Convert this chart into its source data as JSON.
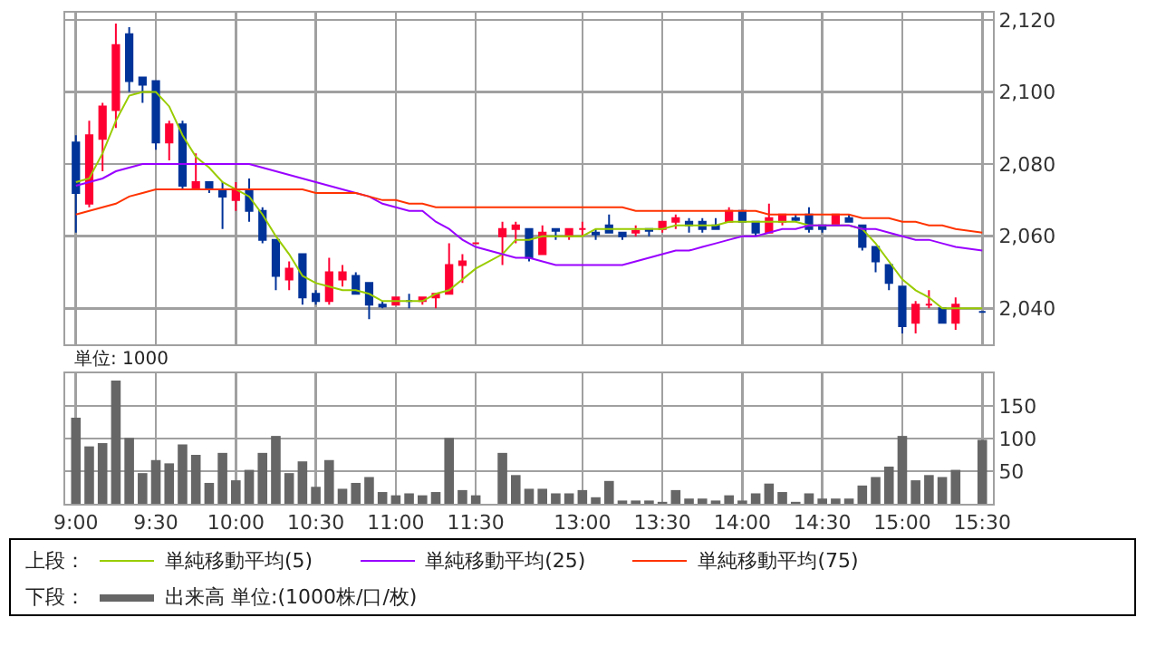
{
  "chart_data": [
    {
      "type": "candlestick",
      "legend_title": "上段：",
      "legend": "bottom",
      "grid": true,
      "tick_labels": "y",
      "categories": [
        null,
        null,
        null,
        null,
        null,
        null,
        null,
        null,
        null,
        null,
        null,
        null,
        null,
        null,
        null,
        null,
        null,
        null,
        null,
        null,
        null,
        null,
        null,
        null,
        null,
        null,
        null,
        null,
        null,
        null,
        null,
        null,
        null,
        null,
        null,
        null,
        null,
        null,
        null,
        null,
        null,
        null,
        null,
        null,
        null,
        null,
        null,
        null,
        null,
        null,
        null,
        null,
        null,
        null,
        null,
        null,
        null,
        null,
        null,
        null,
        null,
        null,
        null,
        null,
        null,
        null,
        null,
        null,
        null
      ],
      "ylim": [
        2030,
        2122
      ],
      "yticks": [
        {
          "value": 2040,
          "label": "2,040"
        },
        {
          "value": 2060,
          "label": "2,060"
        },
        {
          "value": 2080,
          "label": "2,080"
        },
        {
          "value": 2100,
          "label": "2,100"
        },
        {
          "value": 2120,
          "label": "2,120"
        }
      ],
      "ohlc": [
        [
          2086,
          2088,
          2061,
          2072
        ],
        [
          2069,
          2092,
          2068,
          2088
        ],
        [
          2087,
          2097,
          2078,
          2096
        ],
        [
          2095,
          2119,
          2090,
          2113
        ],
        [
          2116,
          2118,
          2100,
          2103
        ],
        [
          2104,
          2104,
          2097,
          2102
        ],
        [
          2103,
          2103,
          2084,
          2086
        ],
        [
          2086,
          2092,
          2081,
          2091
        ],
        [
          2091,
          2092,
          2073,
          2074
        ],
        [
          2073,
          2083,
          2073,
          2075
        ],
        [
          2075,
          2075,
          2072,
          2073
        ],
        [
          2073,
          2075,
          2062,
          2071
        ],
        [
          2070,
          2075,
          2067,
          2073
        ],
        [
          2073,
          2076,
          2064,
          2067
        ],
        [
          2067,
          2068,
          2058,
          2059
        ],
        [
          2059,
          2059,
          2045,
          2049
        ],
        [
          2048,
          2053,
          2045,
          2051
        ],
        [
          2055,
          2055,
          2041,
          2043
        ],
        [
          2044,
          2045,
          2041,
          2042
        ],
        [
          2042,
          2054,
          2041,
          2050
        ],
        [
          2048,
          2052,
          2046,
          2050
        ],
        [
          2049,
          2050,
          2044,
          2044
        ],
        [
          2047,
          2047,
          2037,
          2041
        ],
        [
          2041,
          2042,
          2040,
          2040.5
        ],
        [
          2041,
          2043,
          2041,
          2043
        ],
        [
          2042,
          2044,
          2040,
          2042
        ],
        [
          2042,
          2043,
          2041,
          2043
        ],
        [
          2043,
          2044,
          2040,
          2044
        ],
        [
          2044,
          2058,
          2044,
          2052
        ],
        [
          2052,
          2055,
          2047,
          2053
        ],
        [
          2058,
          2058,
          2058,
          2058
        ],
        null,
        [
          2060,
          2064,
          2052,
          2062
        ],
        [
          2062,
          2064,
          2058,
          2063
        ],
        [
          2062,
          2062,
          2053,
          2054
        ],
        [
          2055,
          2063,
          2055,
          2061
        ],
        [
          2062,
          2062,
          2059,
          2061.5
        ],
        [
          2060,
          2062,
          2059,
          2062
        ],
        [
          2062,
          2064,
          2060,
          2062
        ],
        [
          2061,
          2062,
          2059,
          2060.5
        ],
        [
          2063,
          2066,
          2061,
          2061
        ],
        [
          2061,
          2061,
          2059,
          2060
        ],
        [
          2061,
          2063,
          2060,
          2061.5
        ],
        [
          2062,
          2062,
          2060,
          2061.5
        ],
        [
          2062,
          2064,
          2061,
          2064
        ],
        [
          2064,
          2066,
          2062,
          2065
        ],
        [
          2064,
          2065,
          2061,
          2063
        ],
        [
          2064,
          2065,
          2061,
          2062
        ],
        [
          2063,
          2065,
          2062,
          2062
        ],
        [
          2064,
          2068,
          2064,
          2067
        ],
        [
          2067,
          2067,
          2064,
          2064
        ],
        [
          2064,
          2064,
          2060,
          2061
        ],
        [
          2061,
          2069,
          2061,
          2065
        ],
        [
          2064,
          2066,
          2063,
          2066
        ],
        [
          2065,
          2066,
          2064,
          2064.5
        ],
        [
          2066,
          2068,
          2061,
          2062
        ],
        [
          2063,
          2063,
          2061,
          2062
        ],
        [
          2063,
          2066,
          2063,
          2066
        ],
        [
          2065,
          2066,
          2064,
          2064
        ],
        [
          2063,
          2063,
          2056,
          2057
        ],
        [
          2057,
          2057,
          2050,
          2053
        ],
        [
          2052,
          2052,
          2045,
          2047
        ],
        [
          2046,
          2046,
          2033,
          2035
        ],
        [
          2036,
          2042,
          2033,
          2041
        ],
        [
          2041,
          2045,
          2040,
          2041
        ],
        [
          2040,
          2040,
          2036,
          2036
        ],
        [
          2036,
          2043,
          2034,
          2041
        ],
        null,
        [
          2039,
          2039,
          2039,
          2039
        ]
      ],
      "series": [
        {
          "type": "line",
          "name": "単純移動平均(5)",
          "color": "#99cc00",
          "values": [
            2075,
            2076,
            2083,
            2092,
            2099,
            2100,
            2100,
            2096,
            2088,
            2082,
            2079,
            2075,
            2073,
            2071,
            2066,
            2060,
            2055,
            2049,
            2047,
            2046,
            2045,
            2045,
            2044,
            2042,
            2042,
            2042,
            2042,
            2044,
            2045,
            2048,
            2051,
            null,
            2055,
            2059,
            2059,
            2060,
            2060,
            2060,
            2060,
            2062,
            2062,
            2062,
            2062,
            2062,
            2062,
            2063,
            2063,
            2063,
            2063,
            2064,
            2064,
            2064,
            2064,
            2064,
            2064,
            2063,
            2063,
            2063,
            2063,
            2062,
            2058,
            2053,
            2048,
            2045,
            2043,
            2040,
            2040,
            null,
            2040
          ]
        },
        {
          "type": "line",
          "name": "単純移動平均(25)",
          "color": "#9900ff",
          "values": [
            2074,
            2075,
            2076,
            2078,
            2079,
            2080,
            2080,
            2080,
            2080,
            2080,
            2080,
            2080,
            2080,
            2080,
            2079,
            2078,
            2077,
            2076,
            2075,
            2074,
            2073,
            2072,
            2071,
            2069,
            2068,
            2067,
            2067,
            2064,
            2062,
            2059,
            2057,
            null,
            2055,
            2054,
            2054,
            2053,
            2052,
            2052,
            2052,
            2052,
            2052,
            2052,
            2053,
            2054,
            2055,
            2056,
            2056,
            2057,
            2058,
            2059,
            2060,
            2060,
            2061,
            2062,
            2062,
            2063,
            2063,
            2063,
            2063,
            2062,
            2062,
            2061,
            2060,
            2059,
            2059,
            2058,
            2057,
            null,
            2056
          ]
        },
        {
          "type": "line",
          "name": "単純移動平均(75)",
          "color": "#ff3300",
          "values": [
            2066,
            2067,
            2068,
            2069,
            2071,
            2072,
            2073,
            2073,
            2073,
            2073,
            2073,
            2073,
            2073,
            2073,
            2073,
            2073,
            2073,
            2073,
            2072,
            2072,
            2072,
            2072,
            2071,
            2070,
            2070,
            2069,
            2069,
            2068,
            2068,
            2068,
            2068,
            null,
            2068,
            2068,
            2068,
            2068,
            2068,
            2068,
            2068,
            2068,
            2068,
            2068,
            2067,
            2067,
            2067,
            2067,
            2067,
            2067,
            2067,
            2067,
            2067,
            2067,
            2066,
            2066,
            2066,
            2066,
            2066,
            2066,
            2066,
            2065,
            2065,
            2065,
            2064,
            2064,
            2063,
            2063,
            2062,
            null,
            2061
          ]
        }
      ]
    },
    {
      "type": "bar",
      "legend_title": "下段：",
      "legend": "bottom",
      "grid": true,
      "annotations": [
        "単位: 1000"
      ],
      "categories": [
        "9:00",
        null,
        null,
        null,
        null,
        null,
        "9:30",
        null,
        null,
        null,
        null,
        null,
        "10:00",
        null,
        null,
        null,
        null,
        null,
        "10:30",
        null,
        null,
        null,
        null,
        null,
        "11:00",
        null,
        null,
        null,
        null,
        null,
        "11:30",
        null,
        null,
        null,
        null,
        null,
        null,
        null,
        "13:00",
        null,
        null,
        null,
        null,
        null,
        "13:30",
        null,
        null,
        null,
        null,
        null,
        "14:00",
        null,
        null,
        null,
        null,
        null,
        "14:30",
        null,
        null,
        null,
        null,
        null,
        "15:00",
        null,
        null,
        null,
        null,
        null,
        "15:30"
      ],
      "ylim": [
        0,
        200
      ],
      "yticks": [
        50,
        100,
        150
      ],
      "series": [
        {
          "name": "出来高 単位:(1000株/口/枚)",
          "color": "#666666",
          "values": [
            132,
            88,
            93,
            189,
            101,
            47,
            67,
            62,
            91,
            75,
            32,
            78,
            36,
            52,
            78,
            104,
            47,
            65,
            26,
            67,
            23,
            32,
            41,
            18,
            13,
            16,
            13,
            18,
            101,
            21,
            13,
            null,
            78,
            44,
            23,
            23,
            16,
            16,
            21,
            10,
            35,
            5,
            5,
            5,
            3,
            21,
            8,
            8,
            5,
            13,
            5,
            16,
            31,
            18,
            3,
            16,
            8,
            8,
            8,
            28,
            41,
            57,
            104,
            36,
            44,
            41,
            52,
            null,
            98
          ]
        }
      ]
    }
  ]
}
